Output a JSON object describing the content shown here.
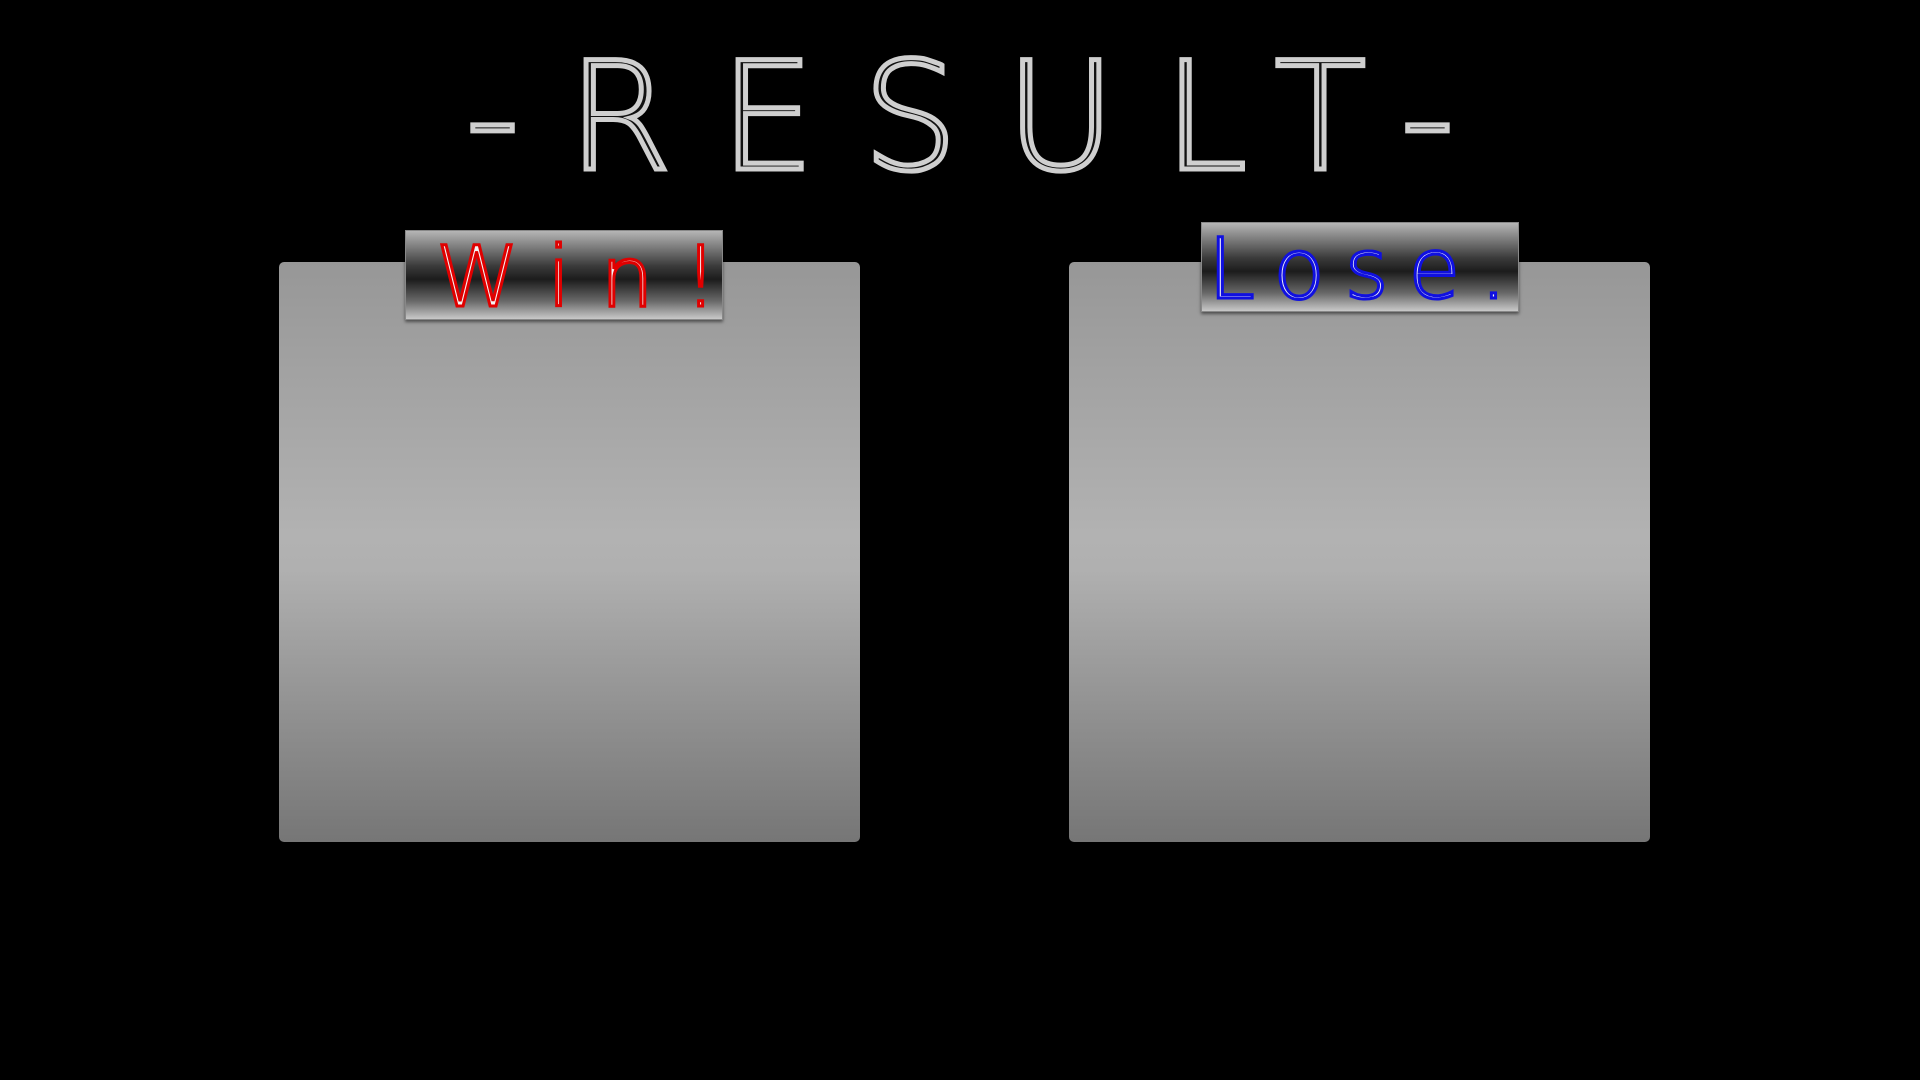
{
  "title": "-RESULT-",
  "panels": [
    {
      "label": "Win!"
    },
    {
      "label": "Lose..."
    }
  ]
}
